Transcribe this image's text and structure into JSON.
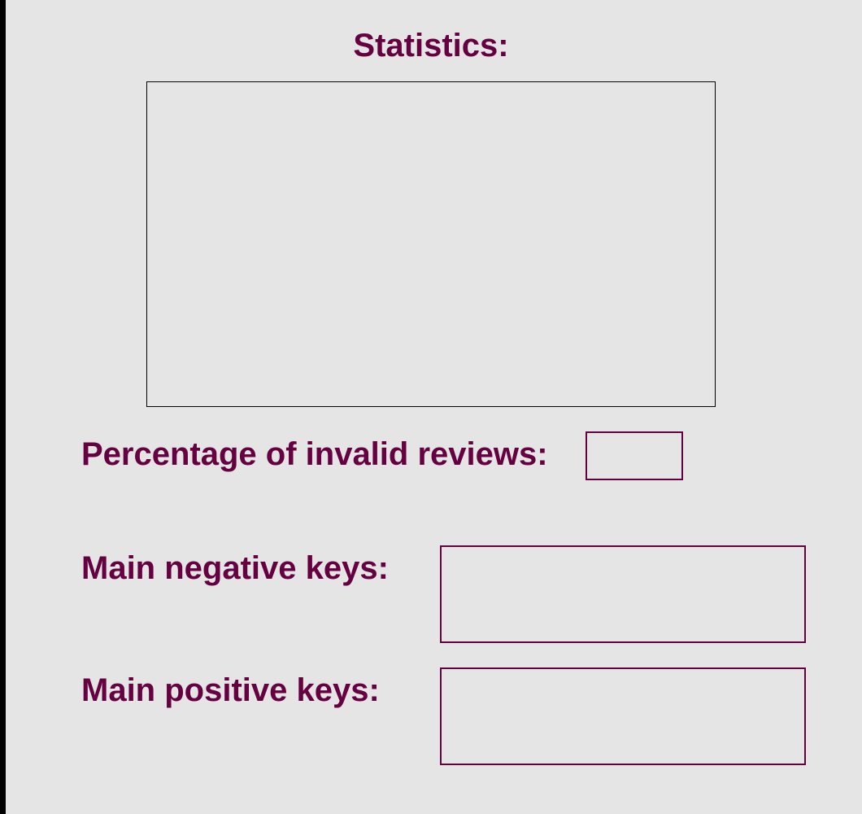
{
  "colors": {
    "text": "#650041",
    "field_border": "#650041",
    "background": "#e6e5e5",
    "left_edge": "#000000"
  },
  "statistics": {
    "title": "Statistics:"
  },
  "invalid_reviews": {
    "label": "Percentage of invalid reviews:",
    "value": ""
  },
  "negative_keys": {
    "label": "Main negative keys:",
    "value": ""
  },
  "positive_keys": {
    "label": "Main positive keys:",
    "value": ""
  }
}
